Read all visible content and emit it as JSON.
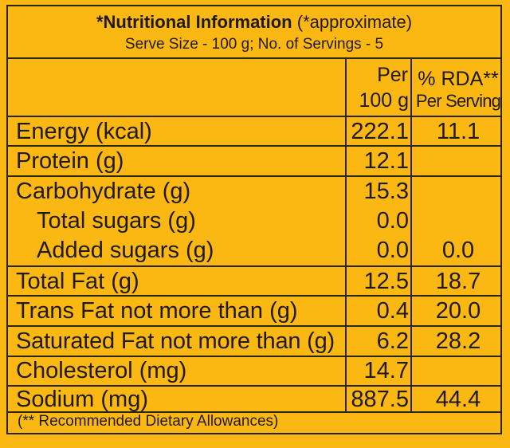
{
  "header": {
    "title_bold": "*Nutritional Information",
    "title_note": " (*approximate)",
    "serve_size": "Serve Size - 100 g; No. of Servings - 5"
  },
  "columns": {
    "per_line1": "Per",
    "per_line2": "100 g",
    "rda_line1": "% RDA**",
    "rda_line2": "Per Serving"
  },
  "rows": [
    {
      "label": "Energy (kcal)",
      "per100g": "222.1",
      "rda": "11.1"
    },
    {
      "label": "Protein (g)",
      "per100g": "12.1",
      "rda": ""
    },
    {
      "label": "Carbohydrate (g)",
      "per100g": "15.3",
      "rda": ""
    },
    {
      "label": "Total sugars (g)",
      "per100g": "0.0",
      "rda": ""
    },
    {
      "label": "Added sugars (g)",
      "per100g": "0.0",
      "rda": "0.0"
    },
    {
      "label": "Total Fat (g)",
      "per100g": "12.5",
      "rda": "18.7"
    },
    {
      "label": "Trans Fat not more than (g)",
      "per100g": "0.4",
      "rda": "20.0"
    },
    {
      "label": "Saturated Fat not more than (g)",
      "per100g": "6.2",
      "rda": "28.2"
    },
    {
      "label": "Cholesterol (mg)",
      "per100g": "14.7",
      "rda": ""
    },
    {
      "label": "Sodium (mg)",
      "per100g": "887.5",
      "rda": "44.4"
    }
  ],
  "footnote": "(** Recommended Dietary Allowances)",
  "colors": {
    "background": "#fbb812",
    "ink": "#1f1a14"
  }
}
